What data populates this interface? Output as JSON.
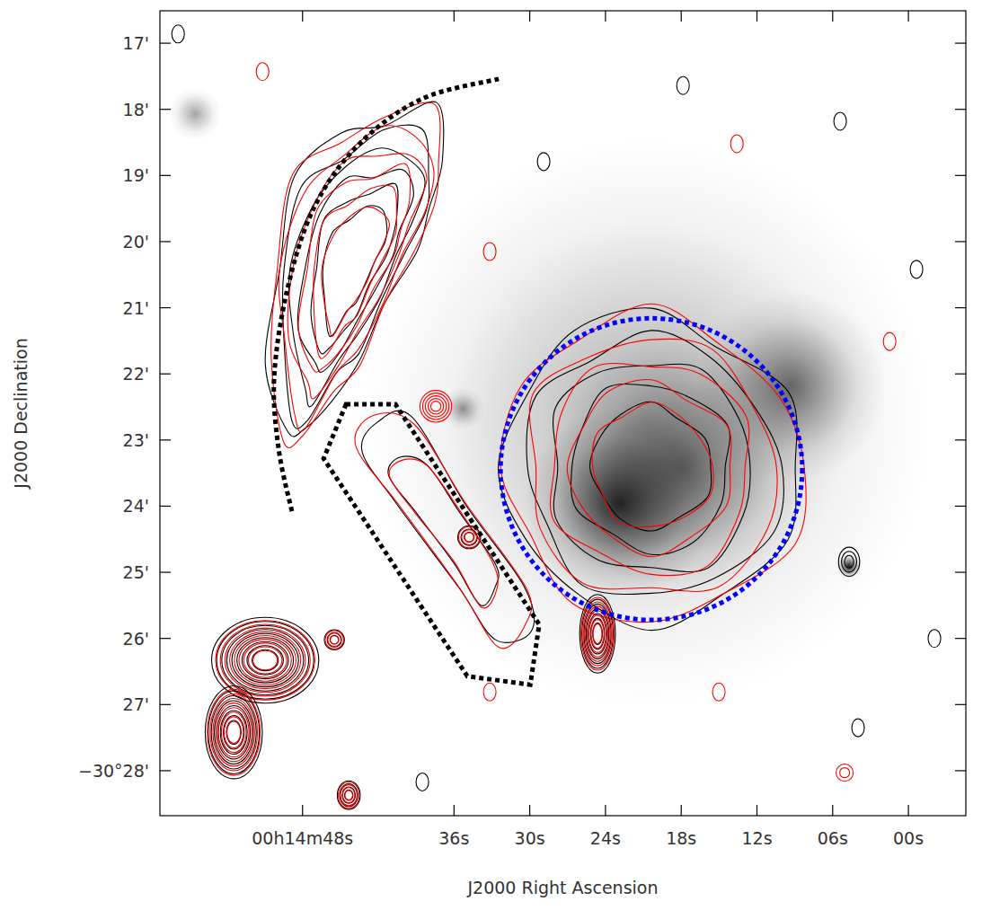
{
  "chart_data": {
    "type": "image",
    "x_label": "J2000 Right Ascension",
    "y_label": "J2000 Declination",
    "xlim": [
      59.3,
      -4.55
    ],
    "ylim": [
      28.68,
      16.51
    ],
    "xticks": [
      {
        "value": 48,
        "label": "00h14m48s"
      },
      {
        "value": 36,
        "label": "36s"
      },
      {
        "value": 30,
        "label": "30s"
      },
      {
        "value": 24,
        "label": "24s"
      },
      {
        "value": 18,
        "label": "18s"
      },
      {
        "value": 12,
        "label": "12s"
      },
      {
        "value": 6,
        "label": "06s"
      },
      {
        "value": 0,
        "label": "00s"
      }
    ],
    "yticks": [
      {
        "value": 17,
        "label": "17'"
      },
      {
        "value": 18,
        "label": "18'"
      },
      {
        "value": 19,
        "label": "19'"
      },
      {
        "value": 20,
        "label": "20'"
      },
      {
        "value": 21,
        "label": "21'"
      },
      {
        "value": 22,
        "label": "22'"
      },
      {
        "value": 23,
        "label": "23'"
      },
      {
        "value": 24,
        "label": "24'"
      },
      {
        "value": 25,
        "label": "25'"
      },
      {
        "value": 26,
        "label": "26'"
      },
      {
        "value": 27,
        "label": "27'"
      },
      {
        "value": 28,
        "label": "−30°28'"
      }
    ],
    "xray_blobs": [
      {
        "ra": 20.71,
        "dec": 22.73,
        "sigma": 2.7,
        "peak": 0.35
      },
      {
        "ra": 22.85,
        "dec": 23.96,
        "sigma": 0.9,
        "peak": 0.8
      },
      {
        "ra": 17.86,
        "dec": 23.41,
        "sigma": 1.2,
        "peak": 0.5
      },
      {
        "ra": 9.32,
        "dec": 22.19,
        "sigma": 0.9,
        "peak": 0.55
      },
      {
        "ra": 4.7,
        "dec": 24.91,
        "sigma": 0.12,
        "peak": 0.9
      },
      {
        "ra": 56.51,
        "dec": 18.07,
        "sigma": 0.25,
        "peak": 0.35
      },
      {
        "ra": 35.3,
        "dec": 22.53,
        "sigma": 0.2,
        "peak": 0.4
      }
    ],
    "diffuse": [
      {
        "colors": [
          "#000000",
          "#ff0000"
        ],
        "levels": 6,
        "points": [
          [
            49.18,
            22.87
          ],
          [
            50.6,
            21.78
          ],
          [
            50.25,
            20.42
          ],
          [
            48.47,
            19.07
          ],
          [
            44.91,
            18.39
          ],
          [
            41.35,
            18.11
          ],
          [
            37.79,
            18.05
          ],
          [
            36.73,
            18.73
          ],
          [
            37.79,
            19.47
          ],
          [
            39.22,
            20.15
          ],
          [
            41.35,
            20.97
          ],
          [
            43.49,
            21.78
          ],
          [
            45.62,
            22.33
          ],
          [
            48.11,
            23.01
          ]
        ]
      },
      {
        "colors": [
          "#000000",
          "#ff0000"
        ],
        "levels": 5,
        "points": [
          [
            8.97,
            23.41
          ],
          [
            10.04,
            22.33
          ],
          [
            15.02,
            21.44
          ],
          [
            20.36,
            21.1
          ],
          [
            26.41,
            21.38
          ],
          [
            30.68,
            22.19
          ],
          [
            31.74,
            23.41
          ],
          [
            30.68,
            24.5
          ],
          [
            26.41,
            25.38
          ],
          [
            20.36,
            25.72
          ],
          [
            14.31,
            25.45
          ],
          [
            9.68,
            24.5
          ]
        ]
      },
      {
        "colors": [
          "#000000",
          "#ff0000"
        ],
        "levels": 2,
        "points": [
          [
            42.06,
            22.73
          ],
          [
            39.22,
            22.73
          ],
          [
            34.95,
            23.96
          ],
          [
            30.68,
            25.18
          ],
          [
            29.96,
            25.86
          ],
          [
            32.46,
            26.13
          ],
          [
            35.66,
            25.18
          ],
          [
            40.64,
            23.96
          ],
          [
            43.49,
            23.14
          ]
        ]
      }
    ],
    "sources": [
      {
        "ra": 37.44,
        "dec": 22.49,
        "a": 0.24,
        "b": 0.24,
        "colors": [
          "#ff0000"
        ],
        "levels": 5
      },
      {
        "ra": 34.8,
        "dec": 24.47,
        "a": 0.16,
        "b": 0.16,
        "colors": [
          "#000000",
          "#ff0000"
        ],
        "levels": 3
      },
      {
        "ra": 24.63,
        "dec": 25.93,
        "a": 0.25,
        "b": 0.55,
        "colors": [
          "#000000",
          "#ff0000"
        ],
        "levels": 7
      },
      {
        "ra": 4.7,
        "dec": 24.84,
        "a": 0.16,
        "b": 0.22,
        "colors": [
          "#000000"
        ],
        "levels": 3
      },
      {
        "ra": 50.96,
        "dec": 26.33,
        "a": 0.75,
        "b": 0.6,
        "colors": [
          "#000000",
          "#ff0000"
        ],
        "levels": 9
      },
      {
        "ra": 53.45,
        "dec": 27.42,
        "a": 0.4,
        "b": 0.65,
        "colors": [
          "#000000",
          "#ff0000"
        ],
        "levels": 8
      },
      {
        "ra": 45.48,
        "dec": 26.02,
        "a": 0.14,
        "b": 0.14,
        "colors": [
          "#000000",
          "#ff0000"
        ],
        "levels": 3
      },
      {
        "ra": 44.34,
        "dec": 28.37,
        "a": 0.16,
        "b": 0.2,
        "colors": [
          "#000000",
          "#ff0000"
        ],
        "levels": 4
      },
      {
        "ra": 5.05,
        "dec": 28.03,
        "a": 0.13,
        "b": 0.13,
        "colors": [
          "#ff0000"
        ],
        "levels": 2
      }
    ],
    "noise": [
      {
        "ra": 57.86,
        "dec": 16.86,
        "color": "#000000"
      },
      {
        "ra": 51.17,
        "dec": 17.43,
        "color": "#ff0000"
      },
      {
        "ra": 28.9,
        "dec": 18.79,
        "color": "#000000"
      },
      {
        "ra": 33.17,
        "dec": 20.15,
        "color": "#ff0000"
      },
      {
        "ra": 17.86,
        "dec": 17.64,
        "color": "#000000"
      },
      {
        "ra": 13.59,
        "dec": 18.52,
        "color": "#ff0000"
      },
      {
        "ra": 5.41,
        "dec": 18.18,
        "color": "#000000"
      },
      {
        "ra": -0.64,
        "dec": 20.42,
        "color": "#000000"
      },
      {
        "ra": 1.49,
        "dec": 21.51,
        "color": "#ff0000"
      },
      {
        "ra": 15.02,
        "dec": 26.81,
        "color": "#ff0000"
      },
      {
        "ra": -2.06,
        "dec": 26.0,
        "color": "#000000"
      },
      {
        "ra": 38.51,
        "dec": 28.17,
        "color": "#000000"
      },
      {
        "ra": 33.17,
        "dec": 26.81,
        "color": "#ff0000"
      },
      {
        "ra": 3.99,
        "dec": 27.35,
        "color": "#000000"
      }
    ],
    "circle": {
      "ra": 20.36,
      "dec": 23.44,
      "radius": 2.28,
      "color": "#0000ff"
    },
    "relic_arc": {
      "color": "#000000",
      "points": [
        [
          32.46,
          17.54
        ],
        [
          38.51,
          17.84
        ],
        [
          43.49,
          18.52
        ],
        [
          47.05,
          19.47
        ],
        [
          49.18,
          20.7
        ],
        [
          50.25,
          22.05
        ],
        [
          49.89,
          23.14
        ],
        [
          48.83,
          24.09
        ]
      ]
    },
    "region": {
      "color": "#000000",
      "points": [
        [
          44.56,
          22.46
        ],
        [
          40.64,
          22.46
        ],
        [
          29.25,
          25.79
        ],
        [
          29.96,
          26.7
        ],
        [
          34.95,
          26.57
        ],
        [
          46.33,
          23.28
        ]
      ]
    }
  }
}
